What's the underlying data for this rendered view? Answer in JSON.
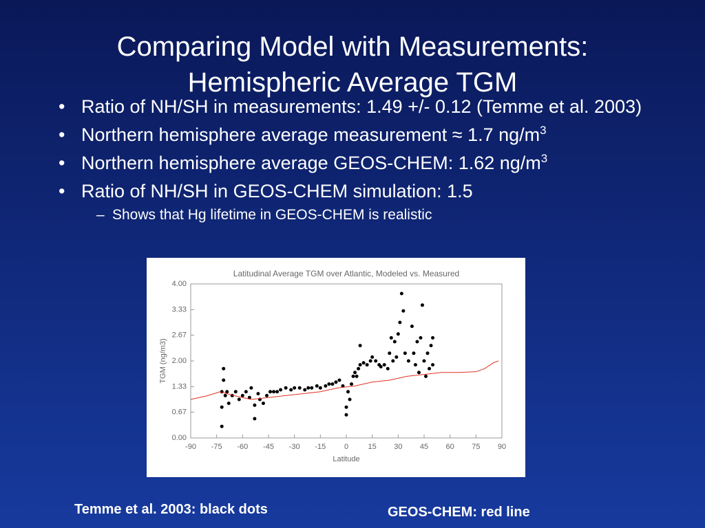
{
  "title": [
    "Comparing Model with Measurements:",
    "Hemispheric Average TGM"
  ],
  "bullets": [
    {
      "text": "Ratio of NH/SH in measurements: 1.49 +/- 0.12 (Temme et al. 2003)"
    },
    {
      "text": "Northern hemisphere average measurement ≈ 1.7 ng/m",
      "sup": "3"
    },
    {
      "text": "Northern hemisphere average GEOS-CHEM: 1.62 ng/m",
      "sup": "3"
    },
    {
      "text": "Ratio of NH/SH in GEOS-CHEM simulation: 1.5",
      "sub": [
        "Shows that Hg lifetime in GEOS-CHEM is realistic"
      ]
    }
  ],
  "captions": [
    "Temme et al. 2003: black dots",
    "GEOS-CHEM: red line"
  ],
  "chart_data": {
    "type": "scatter",
    "title": "Latitudinal Average TGM over Atlantic, Modeled vs. Measured",
    "x_label": "Latitude",
    "y_label": "TGM (ng/m3)",
    "xlim": [
      -90,
      90
    ],
    "xticks": [
      -90,
      -75,
      -60,
      -45,
      -30,
      -15,
      0,
      15,
      30,
      45,
      60,
      75,
      90
    ],
    "ylim": [
      0,
      4
    ],
    "yticks": [
      {
        "value": 0,
        "label": "0.00"
      },
      {
        "value": 0.67,
        "label": "0.67"
      },
      {
        "value": 1.33,
        "label": "1.33"
      },
      {
        "value": 2,
        "label": "2.00"
      },
      {
        "value": 2.67,
        "label": "2.67"
      },
      {
        "value": 3.33,
        "label": "3.33"
      },
      {
        "value": 4,
        "label": "4.00"
      }
    ],
    "series": [
      {
        "type": "scatter",
        "color": "#000000",
        "x": [
          -72,
          -72,
          -72,
          -71,
          -71,
          -70,
          -69,
          -68,
          -66,
          -64,
          -62,
          -60,
          -58,
          -56,
          -55,
          -53,
          -53,
          -51,
          -50,
          -48,
          -46,
          -44,
          -42,
          -40,
          -38,
          -35,
          -32,
          -30,
          -27,
          -24,
          -22,
          -20,
          -17,
          -15,
          -12,
          -10,
          -8,
          -6,
          -4,
          -2,
          0,
          0,
          1,
          2,
          3,
          4,
          5,
          6,
          7,
          8,
          8,
          10,
          12,
          14,
          15,
          17,
          19,
          20,
          22,
          24,
          25,
          26,
          27,
          28,
          29,
          30,
          31,
          32,
          33,
          34,
          36,
          38,
          39,
          40,
          41,
          42,
          43,
          44,
          45,
          46,
          47,
          48,
          49,
          50,
          50
        ],
        "values": [
          0.3,
          0.8,
          1.2,
          1.8,
          1.5,
          1.1,
          1.2,
          0.9,
          1.1,
          1.2,
          1.0,
          1.1,
          1.2,
          1.05,
          1.3,
          0.85,
          0.5,
          1.15,
          1.0,
          0.9,
          1.1,
          1.2,
          1.2,
          1.2,
          1.25,
          1.3,
          1.25,
          1.3,
          1.3,
          1.25,
          1.3,
          1.3,
          1.35,
          1.3,
          1.35,
          1.4,
          1.4,
          1.45,
          1.5,
          1.35,
          0.8,
          0.6,
          1.2,
          1.0,
          1.4,
          1.6,
          1.7,
          1.6,
          1.8,
          1.9,
          2.4,
          1.95,
          1.9,
          2.0,
          2.1,
          2.0,
          1.9,
          1.85,
          1.9,
          1.8,
          2.2,
          2.6,
          2.0,
          2.5,
          2.1,
          2.7,
          3.0,
          3.75,
          3.3,
          2.2,
          2.0,
          2.9,
          2.2,
          1.9,
          2.5,
          1.7,
          2.6,
          3.45,
          2.0,
          1.6,
          2.2,
          1.8,
          2.4,
          2.6,
          1.9
        ]
      },
      {
        "type": "line",
        "color": "#e03020",
        "x": [
          -90,
          -80,
          -73,
          -65,
          -60,
          -55,
          -45,
          -35,
          -25,
          -15,
          -5,
          5,
          15,
          25,
          35,
          45,
          55,
          65,
          75,
          80,
          85,
          88
        ],
        "values": [
          1.0,
          1.1,
          1.2,
          1.1,
          1.05,
          1.0,
          1.05,
          1.1,
          1.15,
          1.2,
          1.3,
          1.35,
          1.45,
          1.5,
          1.6,
          1.65,
          1.7,
          1.7,
          1.72,
          1.8,
          1.95,
          2.0
        ]
      }
    ]
  }
}
